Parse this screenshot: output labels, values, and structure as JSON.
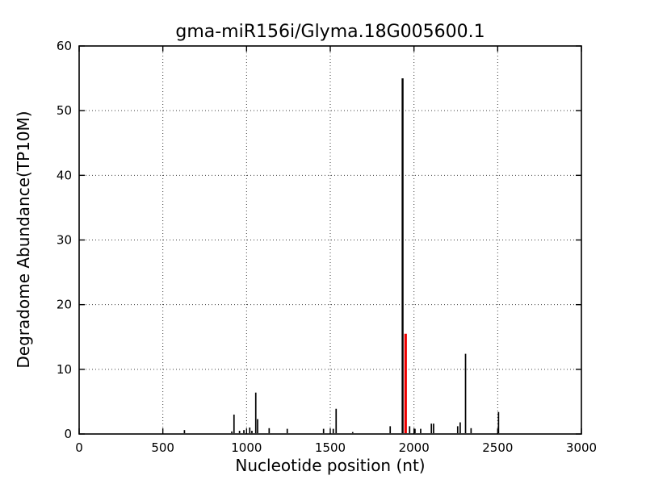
{
  "figure": {
    "background": "#ffffff",
    "frame_color": "#000000",
    "grid_style": "dotted"
  },
  "chart_data": {
    "type": "bar",
    "subtype": "stem-vlines",
    "title": "gma-miR156i/Glyma.18G005600.1",
    "xlabel": "Nucleotide position (nt)",
    "ylabel": "Degradome Abundance(TP10M)",
    "xlim": [
      0,
      3000
    ],
    "ylim": [
      0,
      60
    ],
    "xticks": [
      "0",
      "500",
      "1000",
      "1500",
      "2000",
      "2500",
      "3000"
    ],
    "xtick_values": [
      0,
      500,
      1000,
      1500,
      2000,
      2500,
      3000
    ],
    "yticks": [
      "0",
      "10",
      "20",
      "30",
      "40",
      "50",
      "60"
    ],
    "ytick_values": [
      0,
      10,
      20,
      30,
      40,
      50,
      60
    ],
    "grid": "on",
    "legend": "none",
    "stem_color": "#000000",
    "highlight_color": "#ee0000",
    "points": [
      {
        "x": 629,
        "y": 0.6
      },
      {
        "x": 912,
        "y": 0.4
      },
      {
        "x": 925,
        "y": 3.0
      },
      {
        "x": 958,
        "y": 0.5
      },
      {
        "x": 984,
        "y": 0.6
      },
      {
        "x": 1019,
        "y": 1.0
      },
      {
        "x": 1032,
        "y": 0.5
      },
      {
        "x": 1055,
        "y": 6.4
      },
      {
        "x": 1066,
        "y": 2.3
      },
      {
        "x": 1135,
        "y": 0.9
      },
      {
        "x": 1243,
        "y": 0.8
      },
      {
        "x": 1460,
        "y": 0.8
      },
      {
        "x": 1518,
        "y": 0.8
      },
      {
        "x": 1535,
        "y": 3.9
      },
      {
        "x": 1634,
        "y": 0.3
      },
      {
        "x": 1858,
        "y": 1.2
      },
      {
        "x": 1932,
        "y": 55.0
      },
      {
        "x": 1950,
        "y": 15.5,
        "highlight": true
      },
      {
        "x": 1974,
        "y": 1.2
      },
      {
        "x": 2006,
        "y": 0.8
      },
      {
        "x": 2040,
        "y": 0.8
      },
      {
        "x": 2104,
        "y": 1.6
      },
      {
        "x": 2117,
        "y": 1.6
      },
      {
        "x": 2261,
        "y": 1.2
      },
      {
        "x": 2276,
        "y": 1.8
      },
      {
        "x": 2308,
        "y": 12.4
      },
      {
        "x": 2341,
        "y": 0.9
      },
      {
        "x": 2505,
        "y": 3.4
      }
    ]
  }
}
